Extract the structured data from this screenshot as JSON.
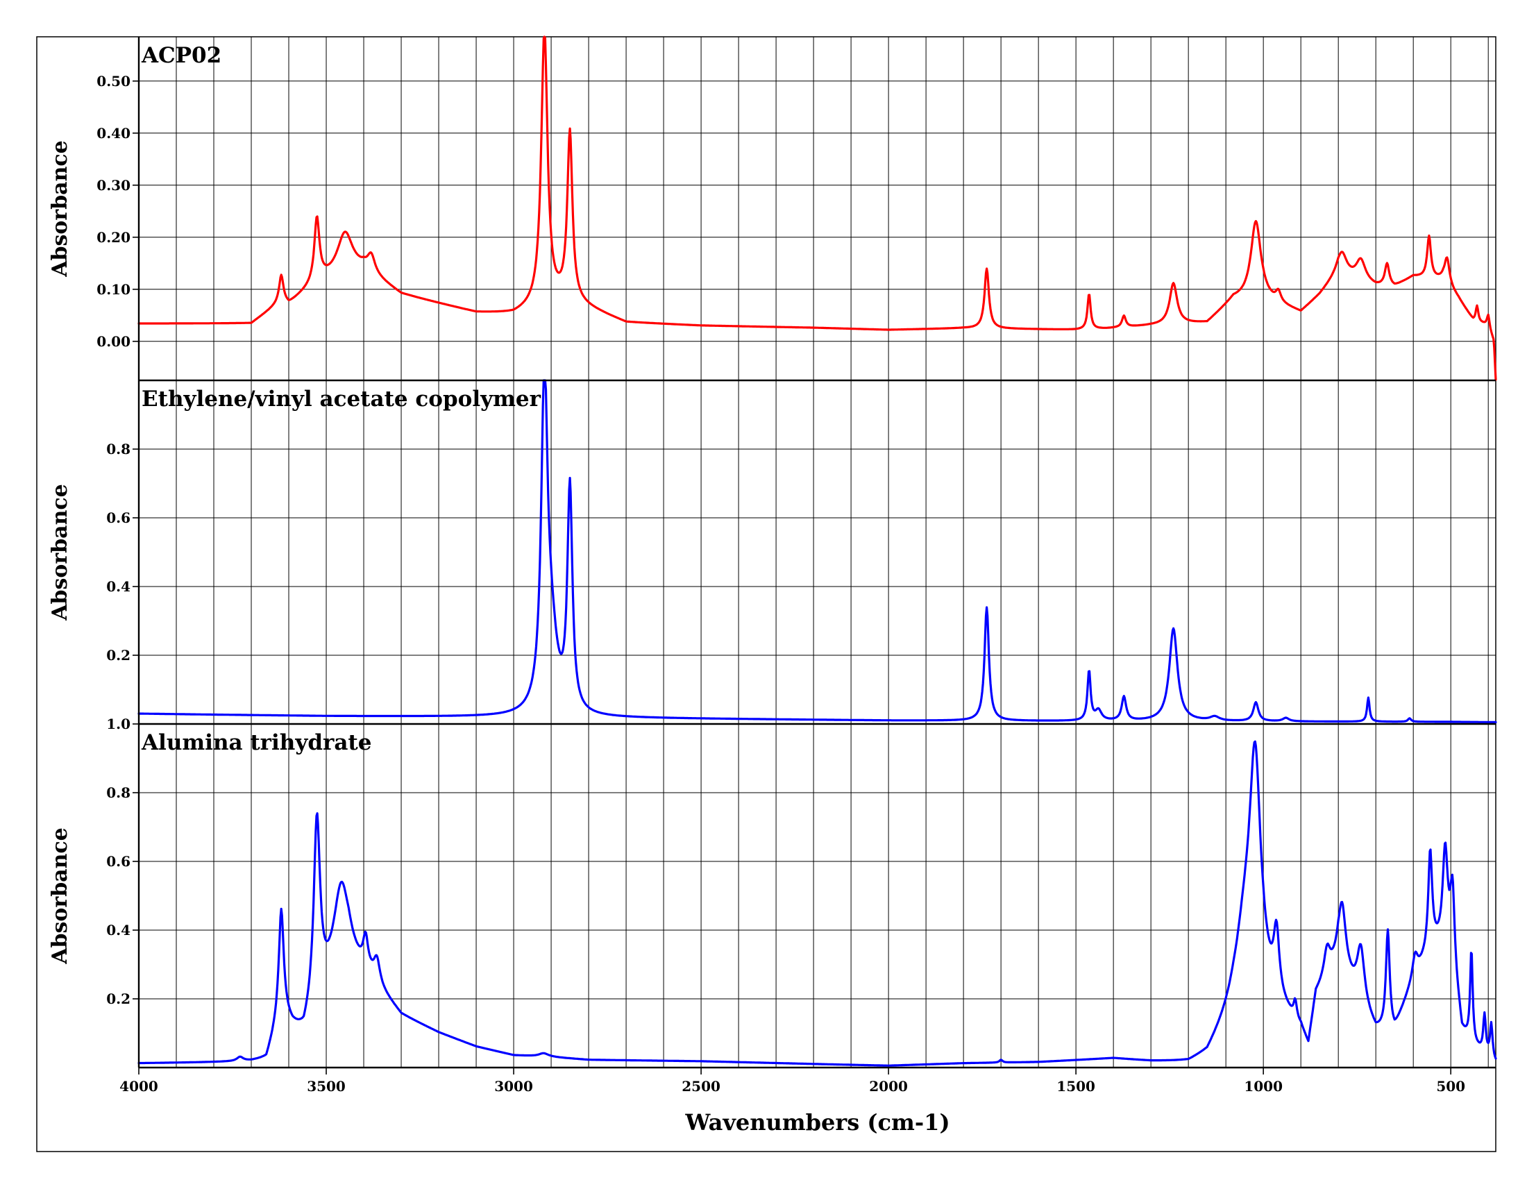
{
  "chart_data": {
    "type": "line",
    "xlabel": "Wavenumbers (cm-1)",
    "xlim": [
      4000,
      380
    ],
    "x_ticks": [
      4000,
      3500,
      3000,
      2500,
      2000,
      1500,
      1000,
      500
    ],
    "x_tick_labels": [
      "4000",
      "3500",
      "3000",
      "2500",
      "2000",
      "1500",
      "1000",
      "500"
    ],
    "panels": [
      {
        "title": "ACP02",
        "ylabel": "Absorbance",
        "ylim": [
          -0.075,
          0.585
        ],
        "y_ticks": [
          0.0,
          0.1,
          0.2,
          0.3,
          0.4,
          0.5
        ],
        "y_tick_labels": [
          "0.00",
          "0.10",
          "0.20",
          "0.30",
          "0.40",
          "0.50"
        ],
        "color": "#ff0000",
        "series": [
          {
            "baseline": [
              [
                4000,
                0.034
              ],
              [
                3700,
                0.034
              ],
              [
                3620,
                0.075
              ],
              [
                3600,
                0.07
              ],
              [
                3520,
                0.115
              ],
              [
                3400,
                0.137
              ],
              [
                3300,
                0.09
              ],
              [
                3100,
                0.055
              ],
              [
                3000,
                0.052
              ],
              [
                2860,
                0.08
              ],
              [
                2700,
                0.036
              ],
              [
                2500,
                0.03
              ],
              [
                2200,
                0.026
              ],
              [
                2000,
                0.022
              ],
              [
                1800,
                0.025
              ],
              [
                1500,
                0.022
              ],
              [
                1420,
                0.024
              ],
              [
                1300,
                0.03
              ],
              [
                1150,
                0.035
              ],
              [
                1080,
                0.08
              ],
              [
                1000,
                0.08
              ],
              [
                900,
                0.055
              ],
              [
                850,
                0.088
              ],
              [
                800,
                0.13
              ],
              [
                700,
                0.105
              ],
              [
                650,
                0.104
              ],
              [
                600,
                0.124
              ],
              [
                520,
                0.118
              ],
              [
                480,
                0.083
              ],
              [
                440,
                0.04
              ],
              [
                400,
                0.03
              ],
              [
                385,
                0.0
              ],
              [
                380,
                -0.075
              ]
            ],
            "peaks": [
              [
                3620,
                0.05,
                7
              ],
              [
                3525,
                0.12,
                8
              ],
              [
                3450,
                0.08,
                25
              ],
              [
                3380,
                0.033,
                12
              ],
              [
                2918,
                0.53,
                10
              ],
              [
                2850,
                0.32,
                8
              ],
              [
                1738,
                0.115,
                7
              ],
              [
                1465,
                0.068,
                5
              ],
              [
                1372,
                0.022,
                6
              ],
              [
                1240,
                0.079,
                12
              ],
              [
                1020,
                0.15,
                16
              ],
              [
                960,
                0.02,
                8
              ],
              [
                790,
                0.04,
                15
              ],
              [
                740,
                0.04,
                15
              ],
              [
                670,
                0.043,
                7
              ],
              [
                558,
                0.08,
                6
              ],
              [
                510,
                0.05,
                8
              ],
              [
                430,
                0.03,
                4
              ],
              [
                400,
                0.02,
                4
              ]
            ]
          }
        ]
      },
      {
        "title": "Ethylene/vinyl acetate copolymer",
        "ylabel": "Absorbance",
        "ylim": [
          0.0,
          1.0
        ],
        "y_ticks": [
          0.2,
          0.4,
          0.6,
          0.8
        ],
        "y_tick_labels": [
          "0.2",
          "0.4",
          "0.6",
          "0.8"
        ],
        "color": "#0000ff",
        "series": [
          {
            "baseline": [
              [
                4000,
                0.03
              ],
              [
                3800,
                0.027
              ],
              [
                3500,
                0.023
              ],
              [
                3000,
                0.02
              ],
              [
                2500,
                0.015
              ],
              [
                2000,
                0.01
              ],
              [
                1500,
                0.008
              ],
              [
                1000,
                0.007
              ],
              [
                500,
                0.006
              ],
              [
                380,
                0.005
              ]
            ],
            "peaks": [
              [
                2918,
                0.94,
                10
              ],
              [
                2900,
                0.2,
                20
              ],
              [
                2850,
                0.65,
                8
              ],
              [
                1738,
                0.33,
                7
              ],
              [
                1465,
                0.145,
                5
              ],
              [
                1440,
                0.03,
                10
              ],
              [
                1372,
                0.07,
                7
              ],
              [
                1240,
                0.27,
                13
              ],
              [
                1130,
                0.012,
                15
              ],
              [
                1020,
                0.055,
                8
              ],
              [
                940,
                0.01,
                10
              ],
              [
                720,
                0.07,
                4
              ],
              [
                610,
                0.01,
                5
              ]
            ]
          }
        ]
      },
      {
        "title": "Alumina trihydrate",
        "ylabel": "Absorbance",
        "ylim": [
          0.0,
          1.0
        ],
        "y_ticks": [
          0.2,
          0.4,
          0.6,
          0.8,
          1.0
        ],
        "y_tick_labels": [
          "0.2",
          "0.4",
          "0.6",
          "0.8",
          "1.0"
        ],
        "color": "#0000ff",
        "series": [
          {
            "baseline": [
              [
                4000,
                0.012
              ],
              [
                3700,
                0.015
              ],
              [
                3660,
                0.02
              ],
              [
                3620,
                0.15
              ],
              [
                3590,
                0.11
              ],
              [
                3560,
                0.09
              ],
              [
                3520,
                0.2
              ],
              [
                3440,
                0.3
              ],
              [
                3380,
                0.25
              ],
              [
                3300,
                0.15
              ],
              [
                3200,
                0.1
              ],
              [
                3100,
                0.06
              ],
              [
                3000,
                0.035
              ],
              [
                2900,
                0.03
              ],
              [
                2800,
                0.022
              ],
              [
                2500,
                0.018
              ],
              [
                2200,
                0.01
              ],
              [
                2000,
                0.005
              ],
              [
                1800,
                0.012
              ],
              [
                1600,
                0.015
              ],
              [
                1400,
                0.025
              ],
              [
                1300,
                0.015
              ],
              [
                1200,
                0.01
              ],
              [
                1150,
                0.03
              ],
              [
                1080,
                0.15
              ],
              [
                1000,
                0.2
              ],
              [
                900,
                0.1
              ],
              [
                880,
                0.05
              ],
              [
                860,
                0.2
              ],
              [
                800,
                0.3
              ],
              [
                700,
                0.1
              ],
              [
                650,
                0.1
              ],
              [
                600,
                0.25
              ],
              [
                550,
                0.35
              ],
              [
                500,
                0.35
              ],
              [
                470,
                0.1
              ],
              [
                440,
                0.06
              ],
              [
                400,
                0.03
              ],
              [
                380,
                0.01
              ]
            ],
            "peaks": [
              [
                3730,
                0.012,
                10
              ],
              [
                3620,
                0.3,
                8
              ],
              [
                3525,
                0.52,
                10
              ],
              [
                3460,
                0.25,
                25
              ],
              [
                3395,
                0.09,
                8
              ],
              [
                3365,
                0.07,
                10
              ],
              [
                2920,
                0.01,
                15
              ],
              [
                1700,
                0.008,
                5
              ],
              [
                1050,
                0.2,
                30
              ],
              [
                1022,
                0.65,
                18
              ],
              [
                965,
                0.18,
                9
              ],
              [
                915,
                0.05,
                5
              ],
              [
                830,
                0.08,
                10
              ],
              [
                790,
                0.18,
                12
              ],
              [
                740,
                0.16,
                12
              ],
              [
                668,
                0.29,
                6
              ],
              [
                595,
                0.06,
                8
              ],
              [
                555,
                0.28,
                6
              ],
              [
                515,
                0.28,
                8
              ],
              [
                495,
                0.2,
                6
              ],
              [
                445,
                0.27,
                4
              ],
              [
                410,
                0.11,
                4
              ],
              [
                392,
                0.1,
                4
              ]
            ]
          }
        ]
      }
    ]
  }
}
